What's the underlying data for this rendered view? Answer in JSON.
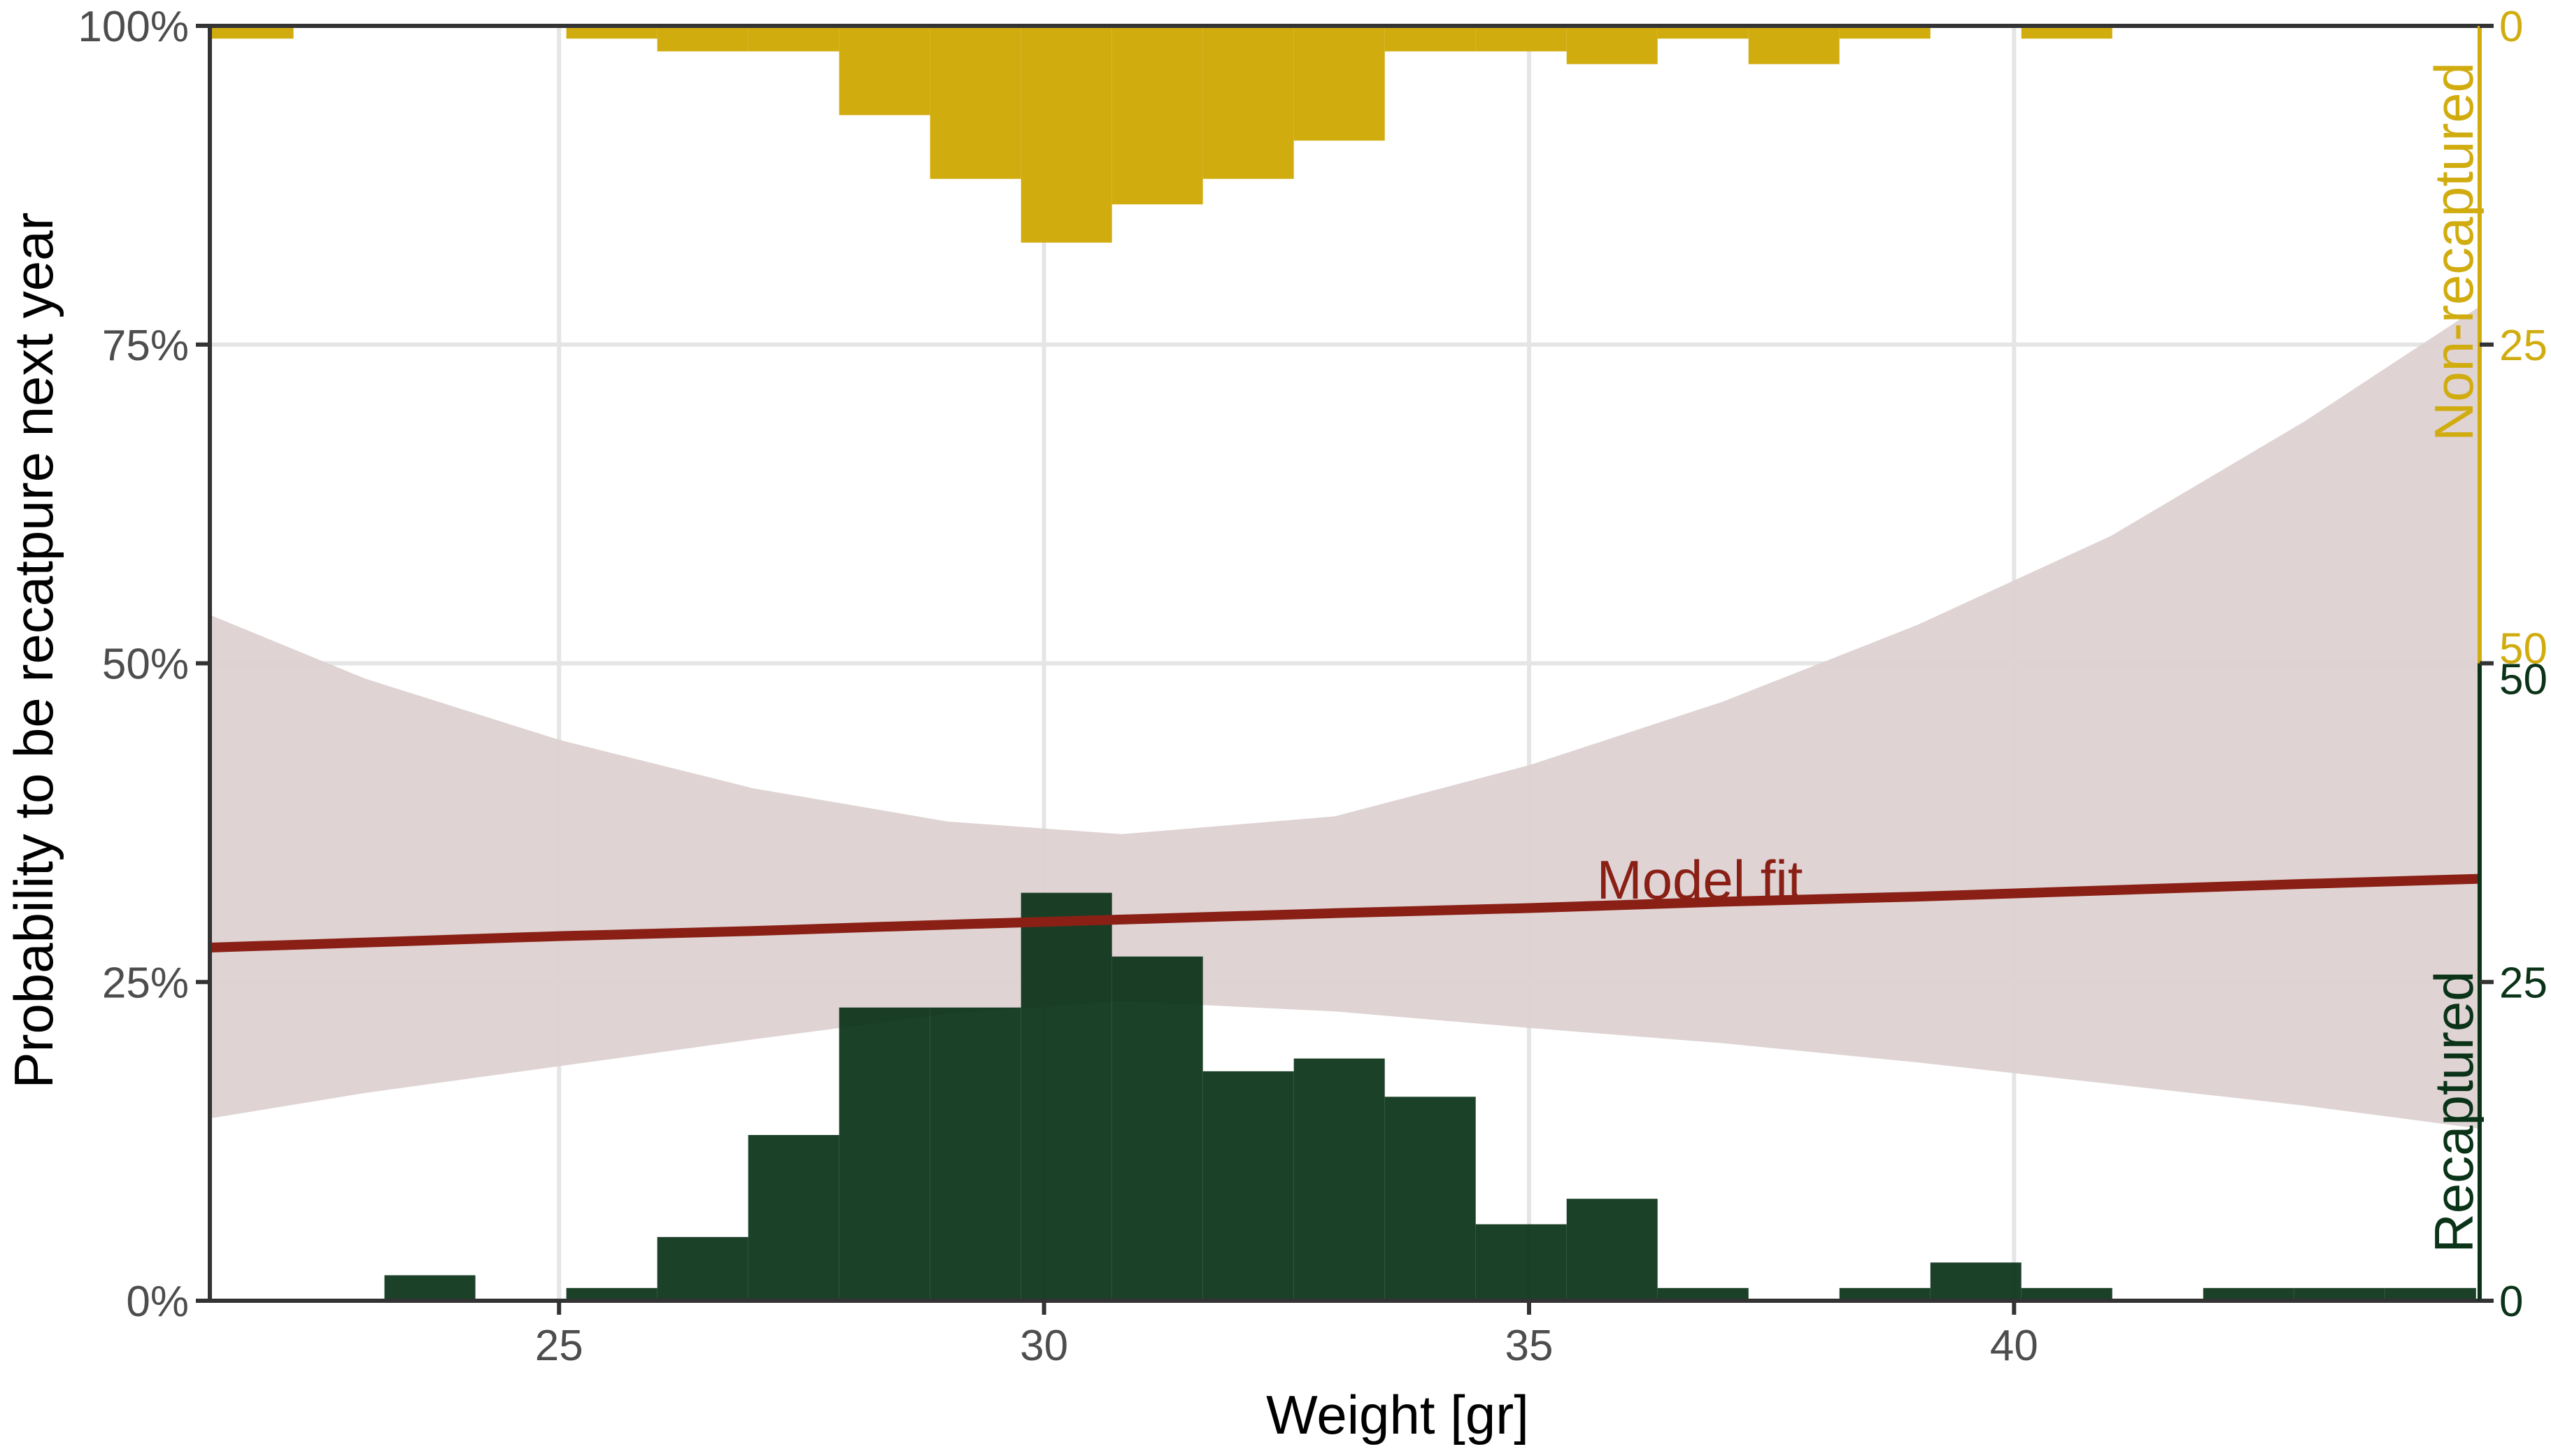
{
  "chart_data": {
    "type": "bar",
    "xlabel": "Weight [gr]",
    "ylabel": "Probability to be recatpure next year",
    "xlim": [
      21.4,
      44.8
    ],
    "ylim": [
      0,
      1
    ],
    "x_ticks": [
      25,
      30,
      35,
      40
    ],
    "y_ticks": [
      {
        "value": 0,
        "label": "0%"
      },
      {
        "value": 0.25,
        "label": "25%"
      },
      {
        "value": 0.5,
        "label": "50%"
      },
      {
        "value": 0.75,
        "label": "75%"
      },
      {
        "value": 1,
        "label": "100%"
      }
    ],
    "grid": true,
    "bin_width": 0.9375,
    "recaptured": {
      "label": "Recaptured",
      "color": "#0a3318",
      "axis_ticks": [
        {
          "value": 0,
          "label": "0"
        },
        {
          "value": 25,
          "label": "25"
        },
        {
          "value": 50,
          "label": "50"
        }
      ],
      "bins": [
        {
          "start": 23.2,
          "count": 2
        },
        {
          "start": 25.075,
          "count": 1
        },
        {
          "start": 26.0125,
          "count": 5
        },
        {
          "start": 26.95,
          "count": 13
        },
        {
          "start": 27.8875,
          "count": 23
        },
        {
          "start": 28.825,
          "count": 23
        },
        {
          "start": 29.7625,
          "count": 32
        },
        {
          "start": 30.7,
          "count": 27
        },
        {
          "start": 31.6375,
          "count": 18
        },
        {
          "start": 32.575,
          "count": 19
        },
        {
          "start": 33.5125,
          "count": 16
        },
        {
          "start": 34.45,
          "count": 6
        },
        {
          "start": 35.3875,
          "count": 8
        },
        {
          "start": 36.325,
          "count": 1
        },
        {
          "start": 38.2,
          "count": 1
        },
        {
          "start": 39.1375,
          "count": 3
        },
        {
          "start": 40.075,
          "count": 1
        },
        {
          "start": 41.95,
          "count": 1
        },
        {
          "start": 42.8875,
          "count": 1
        },
        {
          "start": 43.825,
          "count": 1
        }
      ]
    },
    "non_recaptured": {
      "label": "Non-recaptured",
      "color": "#d1ac0f",
      "axis_ticks": [
        {
          "value": 0,
          "label": "0"
        },
        {
          "value": 25,
          "label": "25"
        },
        {
          "value": 50,
          "label": "50"
        }
      ],
      "bins": [
        {
          "start": 21.325,
          "count": 1
        },
        {
          "start": 25.075,
          "count": 1
        },
        {
          "start": 26.0125,
          "count": 2
        },
        {
          "start": 26.95,
          "count": 2
        },
        {
          "start": 27.8875,
          "count": 7
        },
        {
          "start": 28.825,
          "count": 12
        },
        {
          "start": 29.7625,
          "count": 17
        },
        {
          "start": 30.7,
          "count": 14
        },
        {
          "start": 31.6375,
          "count": 12
        },
        {
          "start": 32.575,
          "count": 9
        },
        {
          "start": 33.5125,
          "count": 2
        },
        {
          "start": 34.45,
          "count": 2
        },
        {
          "start": 35.3875,
          "count": 3
        },
        {
          "start": 36.325,
          "count": 1
        },
        {
          "start": 37.2625,
          "count": 3
        },
        {
          "start": 38.2,
          "count": 1
        },
        {
          "start": 40.075,
          "count": 1
        }
      ]
    },
    "model_fit": {
      "label": "Model fit",
      "line_color": "#8a2015",
      "band_color": "#ddd1d2",
      "x": [
        21.4,
        23,
        25,
        27,
        29,
        30.8,
        33,
        35,
        37,
        39,
        41,
        43,
        44.8
      ],
      "fit": [
        0.277,
        0.281,
        0.286,
        0.29,
        0.295,
        0.299,
        0.304,
        0.308,
        0.313,
        0.317,
        0.322,
        0.327,
        0.331
      ],
      "lower": [
        0.143,
        0.163,
        0.184,
        0.205,
        0.225,
        0.235,
        0.227,
        0.214,
        0.202,
        0.187,
        0.17,
        0.153,
        0.135
      ],
      "upper": [
        0.538,
        0.488,
        0.44,
        0.402,
        0.376,
        0.366,
        0.38,
        0.42,
        0.47,
        0.53,
        0.6,
        0.69,
        0.78
      ]
    }
  }
}
